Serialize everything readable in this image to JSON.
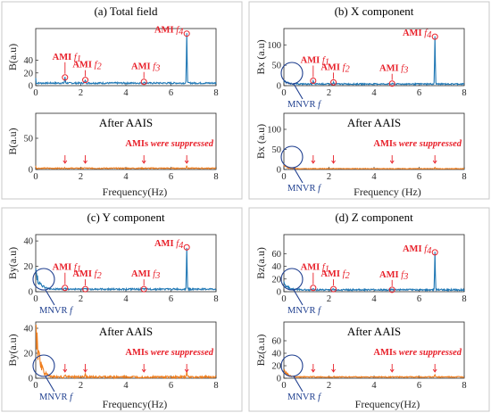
{
  "panels": [
    {
      "title": "(a) Total field",
      "top": {
        "ylabel": "B(a.u)",
        "ylim": [
          0,
          90
        ],
        "yticks": [
          "0",
          "20",
          "40"
        ],
        "ytick_values": [
          0,
          20,
          40
        ],
        "base": 4,
        "noise": 1.2,
        "lowfreq_peak": 0,
        "mnvr": false,
        "peaks": [
          {
            "label": "AMI",
            "f": "f1",
            "x": 1.3,
            "y": 13
          },
          {
            "label": "AMI",
            "f": "f2",
            "x": 2.2,
            "y": 9
          },
          {
            "label": "AMI",
            "f": "f3",
            "x": 4.8,
            "y": 6
          },
          {
            "label": "AMI",
            "f": "f4",
            "x": 6.7,
            "y": 82
          }
        ]
      },
      "bottom": {
        "ylabel": "B(a.u)",
        "ylim": [
          0,
          90
        ],
        "yticks": [
          "0",
          "50"
        ],
        "ytick_values": [
          0,
          50
        ],
        "base": 2,
        "subtitle": "After AAIS",
        "mnvr": false,
        "lowfreq_peak": 0,
        "note_bold": "AMIs",
        "note_italic": "were suppressed",
        "arrows_x": [
          1.3,
          2.2,
          4.8,
          6.7
        ]
      }
    },
    {
      "title": "(b) X component",
      "top": {
        "ylabel": "Bx (a.u)",
        "ylim": [
          0,
          140
        ],
        "yticks": [
          "0",
          "50",
          "100"
        ],
        "ytick_values": [
          0,
          50,
          100
        ],
        "base": 4,
        "noise": 1.5,
        "lowfreq_peak": 8,
        "mnvr": true,
        "mnvr_label": "MNVR",
        "mnvr_f": "f",
        "peaks": [
          {
            "label": "AMI",
            "f": "f1",
            "x": 1.3,
            "y": 12
          },
          {
            "label": "AMI",
            "f": "f2",
            "x": 2.2,
            "y": 8
          },
          {
            "label": "AMI",
            "f": "f3",
            "x": 4.8,
            "y": 5
          },
          {
            "label": "AMI",
            "f": "f4",
            "x": 6.7,
            "y": 120
          }
        ]
      },
      "bottom": {
        "ylabel": "Bx (a.u)",
        "ylim": [
          0,
          140
        ],
        "yticks": [
          "0",
          "50",
          "100"
        ],
        "ytick_values": [
          0,
          50,
          100
        ],
        "base": 2,
        "subtitle": "After AAIS",
        "mnvr": true,
        "mnvr_label": "MNVR",
        "mnvr_f": "f",
        "lowfreq_peak": 8,
        "note_bold": "AMIs",
        "note_italic": "were suppressed",
        "arrows_x": [
          1.3,
          2.2,
          4.8,
          6.7
        ]
      }
    },
    {
      "title": "(c) Y component",
      "top": {
        "ylabel": "By(a.u)",
        "ylim": [
          0,
          45
        ],
        "yticks": [
          "0",
          "20",
          "40"
        ],
        "ytick_values": [
          0,
          20,
          40
        ],
        "base": 2,
        "noise": 0.6,
        "lowfreq_peak": 15,
        "mnvr": true,
        "mnvr_label": "MNVR",
        "mnvr_f": "f",
        "peaks": [
          {
            "label": "AMI",
            "f": "f1",
            "x": 1.3,
            "y": 3
          },
          {
            "label": "AMI",
            "f": "f2",
            "x": 2.2,
            "y": 2
          },
          {
            "label": "AMI",
            "f": "f3",
            "x": 4.8,
            "y": 2
          },
          {
            "label": "AMI",
            "f": "f4",
            "x": 6.7,
            "y": 35
          }
        ]
      },
      "bottom": {
        "ylabel": "By(a.u)",
        "ylim": [
          0,
          45
        ],
        "yticks": [
          "0",
          "20",
          "40"
        ],
        "ytick_values": [
          0,
          20,
          40
        ],
        "base": 1,
        "subtitle": "After AAIS",
        "mnvr": true,
        "mnvr_label": "MNVR",
        "mnvr_f": "f",
        "lowfreq_peak": 38,
        "note_bold": "AMIs",
        "note_italic": "were suppressed",
        "arrows_x": [
          1.3,
          2.2,
          4.8,
          6.7
        ]
      }
    },
    {
      "title": "(d) Z component",
      "top": {
        "ylabel": "Bz(a.u)",
        "ylim": [
          0,
          90
        ],
        "yticks": [
          "0",
          "20",
          "40",
          "60"
        ],
        "ytick_values": [
          0,
          20,
          40,
          60
        ],
        "base": 3,
        "noise": 1.2,
        "lowfreq_peak": 12,
        "mnvr": true,
        "mnvr_label": "MNVR",
        "mnvr_f": "f",
        "peaks": [
          {
            "label": "AMI",
            "f": "f1",
            "x": 1.3,
            "y": 6
          },
          {
            "label": "AMI",
            "f": "f2",
            "x": 2.2,
            "y": 4
          },
          {
            "label": "AMI",
            "f": "f3",
            "x": 4.8,
            "y": 3
          },
          {
            "label": "AMI",
            "f": "f4",
            "x": 6.7,
            "y": 62
          }
        ]
      },
      "bottom": {
        "ylabel": "Bz(a.u)",
        "ylim": [
          0,
          90
        ],
        "yticks": [
          "0",
          "20",
          "40",
          "60"
        ],
        "ytick_values": [
          0,
          20,
          40,
          60
        ],
        "base": 2,
        "subtitle": "After AAIS",
        "mnvr": true,
        "mnvr_label": "MNVR",
        "mnvr_f": "f",
        "lowfreq_peak": 10,
        "note_bold": "AMIs",
        "note_italic": "were suppressed",
        "arrows_x": [
          1.3,
          2.2,
          4.8,
          6.7
        ]
      }
    }
  ],
  "chart_data": {
    "type": "line",
    "xlabel": "Frequency(Hz)",
    "xlabel_alt": "Frequency (Hz)",
    "xlim": [
      0,
      8
    ],
    "xticks": [
      "0",
      "2",
      "4",
      "6",
      "8"
    ],
    "xtick_values": [
      0,
      2,
      4,
      6,
      8
    ],
    "colors": {
      "before": "#1f77b4",
      "after": "#f07f1f",
      "annotation": "#e8202a",
      "mnvr": "#1f3f8f"
    }
  }
}
